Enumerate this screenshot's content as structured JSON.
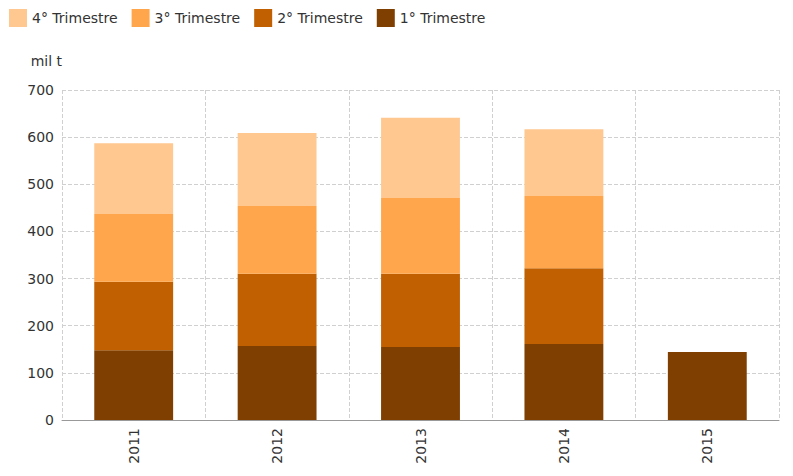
{
  "chart_data": {
    "type": "bar",
    "stacked": true,
    "grid": true,
    "legend": "top-left",
    "y_label": "mil t",
    "categories": [
      "2011",
      "2012",
      "2013",
      "2014",
      "2015"
    ],
    "series": [
      {
        "name": "4° Trimestre",
        "color": "#ffc891",
        "values": [
          150,
          155,
          170,
          142,
          null
        ]
      },
      {
        "name": "3° Trimestre",
        "color": "#ffa64d",
        "values": [
          144,
          144,
          161,
          153,
          null
        ]
      },
      {
        "name": "2° Trimestre",
        "color": "#c06000",
        "values": [
          145,
          153,
          155,
          161,
          null
        ]
      },
      {
        "name": "1° Trimestre",
        "color": "#7f3f00",
        "values": [
          148,
          157,
          155,
          161,
          144
        ]
      }
    ],
    "ylim": [
      0,
      700
    ],
    "yticks": [
      0,
      100,
      200,
      300,
      400,
      500,
      600,
      700
    ]
  }
}
